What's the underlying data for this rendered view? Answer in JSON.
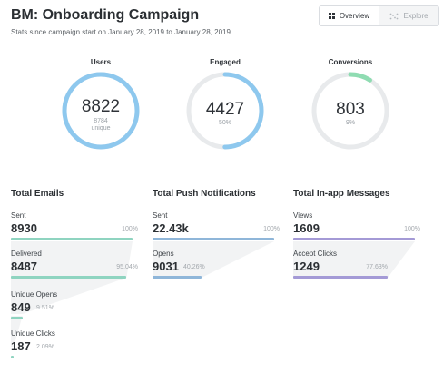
{
  "header": {
    "title": "BM: Onboarding Campaign",
    "subtitle": "Stats since campaign start on January 28, 2019 to January 28, 2019"
  },
  "view_toggle": {
    "overview_label": "Overview",
    "explore_label": "Explore",
    "overview_icon": "grid-icon",
    "explore_icon": "scatter-icon"
  },
  "gauges": {
    "users": {
      "label": "Users",
      "value": "8822",
      "sub1": "8784",
      "sub2": "unique",
      "fraction": 1.0,
      "color": "#8ec8ee"
    },
    "engaged": {
      "label": "Engaged",
      "value": "4427",
      "sub1": "50%",
      "fraction": 0.5,
      "color": "#8ec8ee"
    },
    "conversions": {
      "label": "Conversions",
      "value": "803",
      "sub1": "9%",
      "fraction": 0.09,
      "color": "#8fdcb2"
    }
  },
  "emails": {
    "title": "Total Emails",
    "color": "#8fd4c0",
    "metrics": [
      {
        "label": "Sent",
        "value": "8930",
        "pct": "100%",
        "fraction": 1.0
      },
      {
        "label": "Delivered",
        "value": "8487",
        "pct": "95.04%",
        "fraction": 0.9504
      },
      {
        "label": "Unique Opens",
        "value": "849",
        "pct": "9.51%",
        "fraction": 0.0951
      },
      {
        "label": "Unique Clicks",
        "value": "187",
        "pct": "2.09%",
        "fraction": 0.0209
      }
    ]
  },
  "push": {
    "title": "Total Push Notifications",
    "color": "#8fb6d9",
    "metrics": [
      {
        "label": "Sent",
        "value": "22.43k",
        "pct": "100%",
        "fraction": 1.0
      },
      {
        "label": "Opens",
        "value": "9031",
        "pct": "40.26%",
        "fraction": 0.4026
      }
    ]
  },
  "inapp": {
    "title": "Total In-app Messages",
    "color": "#a49ad6",
    "metrics": [
      {
        "label": "Views",
        "value": "1609",
        "pct": "100%",
        "fraction": 1.0
      },
      {
        "label": "Accept Clicks",
        "value": "1249",
        "pct": "77.63%",
        "fraction": 0.7763
      }
    ]
  }
}
